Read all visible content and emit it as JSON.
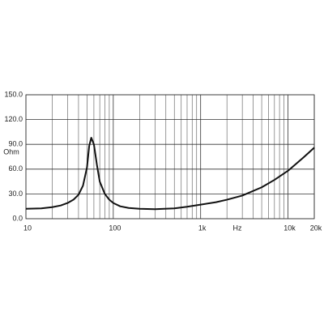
{
  "chart_data": {
    "type": "line",
    "y_label": "Ohm",
    "x_label": "Hz",
    "log_x": true,
    "grid": true,
    "xlim": [
      10,
      20000
    ],
    "xticks": [
      10,
      100,
      {
        "value": 1000,
        "label": "1k"
      },
      {
        "value": 10000,
        "label": "10k"
      },
      {
        "value": 20000,
        "label": "20k"
      }
    ],
    "xminor": [
      20,
      30,
      40,
      50,
      60,
      70,
      80,
      90,
      200,
      300,
      400,
      500,
      600,
      700,
      800,
      900,
      2000,
      3000,
      4000,
      5000,
      6000,
      7000,
      8000,
      9000
    ],
    "ylim": [
      0,
      150
    ],
    "yticks": [
      {
        "value": 0,
        "label": "0.0"
      },
      {
        "value": 30,
        "label": "30.0"
      },
      {
        "value": 60,
        "label": "60.0"
      },
      {
        "value": 90,
        "label": "90.0"
      },
      {
        "value": 120,
        "label": "120.0"
      },
      {
        "value": 150,
        "label": "150.0"
      }
    ],
    "x": [
      10,
      15,
      20,
      25,
      30,
      35,
      40,
      45,
      50,
      53,
      56,
      60,
      65,
      70,
      80,
      90,
      100,
      120,
      150,
      200,
      300,
      500,
      700,
      1000,
      1500,
      2000,
      3000,
      5000,
      7000,
      10000,
      15000,
      20000
    ],
    "series": [
      {
        "color": "#111111",
        "values": [
          12,
          12.5,
          14,
          16,
          19,
          23,
          29,
          40,
          62,
          88,
          98,
          90,
          65,
          45,
          30,
          23,
          19,
          15,
          13,
          12,
          11.5,
          12.5,
          14.5,
          17,
          20,
          23,
          28,
          38,
          47,
          58,
          74,
          86
        ]
      }
    ]
  }
}
